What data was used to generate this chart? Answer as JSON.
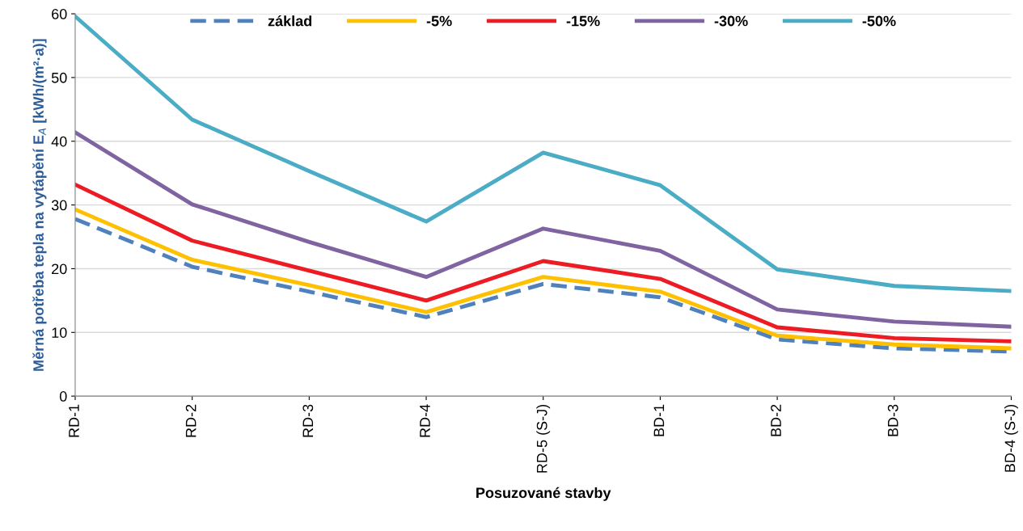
{
  "chart_data": {
    "type": "line",
    "xlabel": "Posuzované stavby",
    "ylabel": "Měrná potřeba tepla na vytápění E$_{A}$ [kWh/(m²·a)]",
    "categories": [
      "RD-1",
      "RD-2",
      "RD-3",
      "RD-4",
      "RD-5 (S-J)",
      "BD-1",
      "BD-2",
      "BD-3",
      "BD-4 (S-J)"
    ],
    "ylim": [
      0,
      60
    ],
    "yticks": [
      0,
      10,
      20,
      30,
      40,
      50,
      60
    ],
    "grid": "y",
    "legend": "top",
    "marker": "none",
    "series": [
      {
        "name": "základ",
        "color": "#4f81bd",
        "line_style": "dashed",
        "values": [
          27.8,
          20.3,
          16.4,
          12.4,
          17.6,
          15.5,
          8.9,
          7.5,
          7.0
        ]
      },
      {
        "name": "-5%",
        "color": "#ffc000",
        "line_style": "solid",
        "values": [
          29.3,
          21.4,
          17.4,
          13.2,
          18.7,
          16.4,
          9.5,
          8.1,
          7.5
        ]
      },
      {
        "name": "-15%",
        "color": "#ed1c24",
        "line_style": "solid",
        "values": [
          33.2,
          24.4,
          19.7,
          15.0,
          21.2,
          18.4,
          10.8,
          9.1,
          8.6
        ]
      },
      {
        "name": "-30%",
        "color": "#8064a2",
        "line_style": "solid",
        "values": [
          41.4,
          30.1,
          24.2,
          18.7,
          26.3,
          22.8,
          13.6,
          11.7,
          10.9
        ]
      },
      {
        "name": "-50%",
        "color": "#4bacc6",
        "line_style": "solid",
        "values": [
          59.6,
          43.4,
          35.3,
          27.4,
          38.2,
          33.1,
          19.9,
          17.3,
          16.5
        ]
      }
    ]
  }
}
